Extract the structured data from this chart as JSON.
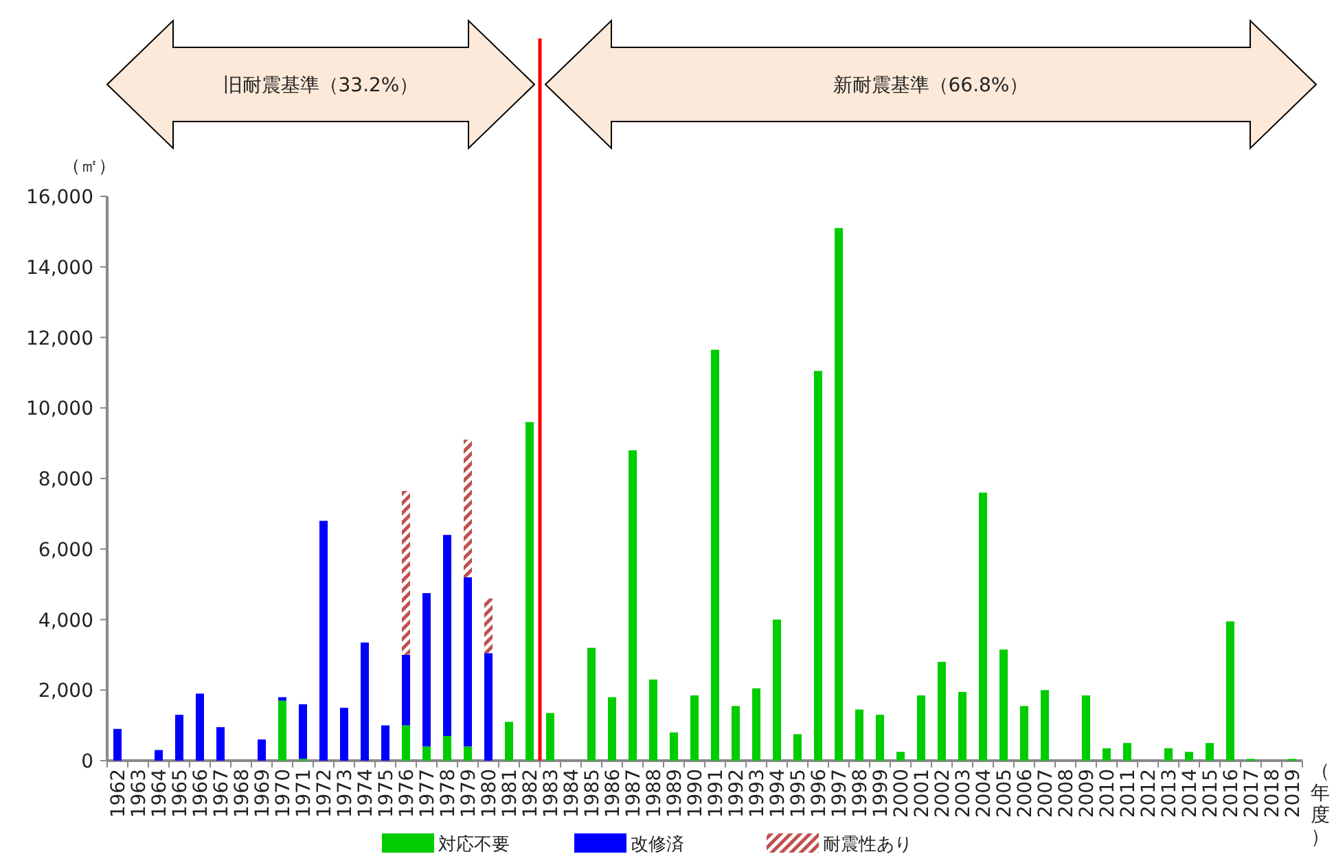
{
  "chart_data": {
    "type": "bar",
    "stacked": true,
    "annotations": [
      "旧耐震基準（33.2%）",
      "新耐震基準（66.8%）"
    ],
    "ylabel": "（㎡）",
    "xlabel": "（年度）",
    "categories": [
      "1962",
      "1963",
      "1964",
      "1965",
      "1966",
      "1967",
      "1968",
      "1969",
      "1970",
      "1971",
      "1972",
      "1973",
      "1974",
      "1975",
      "1976",
      "1977",
      "1978",
      "1979",
      "1980",
      "1981",
      "1982",
      "1983",
      "1984",
      "1985",
      "1986",
      "1987",
      "1988",
      "1989",
      "1990",
      "1991",
      "1992",
      "1993",
      "1994",
      "1995",
      "1996",
      "1997",
      "1998",
      "1999",
      "2000",
      "2001",
      "2002",
      "2003",
      "2004",
      "2005",
      "2006",
      "2007",
      "2008",
      "2009",
      "2010",
      "2011",
      "2012",
      "2013",
      "2014",
      "2015",
      "2016",
      "2017",
      "2018",
      "2019"
    ],
    "series": [
      {
        "name": "対応不要",
        "color": "#00cc00",
        "values": [
          null,
          null,
          null,
          null,
          null,
          null,
          null,
          null,
          1700,
          50,
          null,
          null,
          null,
          null,
          1000,
          400,
          700,
          400,
          null,
          1100,
          9600,
          1350,
          null,
          3200,
          1800,
          8800,
          2300,
          800,
          1850,
          11650,
          1550,
          2050,
          4000,
          750,
          11050,
          15100,
          1450,
          1300,
          250,
          1850,
          2800,
          1950,
          7600,
          3150,
          1550,
          2000,
          null,
          1850,
          350,
          500,
          null,
          350,
          250,
          500,
          3950,
          50,
          null,
          50
        ]
      },
      {
        "name": "改修済",
        "color": "#0000ff",
        "values": [
          900,
          null,
          300,
          1300,
          1900,
          950,
          null,
          600,
          100,
          1550,
          6800,
          1500,
          3350,
          1000,
          2000,
          4350,
          5700,
          4800,
          3050,
          null,
          null,
          null,
          null,
          null,
          null,
          null,
          null,
          null,
          null,
          null,
          null,
          null,
          null,
          null,
          null,
          null,
          null,
          null,
          null,
          null,
          null,
          null,
          null,
          null,
          null,
          null,
          null,
          null,
          null,
          null,
          null,
          null,
          null,
          null,
          null,
          null,
          null,
          null
        ]
      },
      {
        "name": "耐震性あり",
        "color": "#c0504d",
        "values": [
          null,
          null,
          null,
          null,
          null,
          null,
          null,
          null,
          null,
          null,
          null,
          null,
          null,
          null,
          4650,
          null,
          null,
          3900,
          1550,
          null,
          null,
          null,
          null,
          null,
          null,
          null,
          null,
          null,
          null,
          null,
          null,
          null,
          null,
          null,
          null,
          null,
          null,
          null,
          null,
          null,
          null,
          null,
          null,
          null,
          null,
          null,
          null,
          null,
          null,
          null,
          null,
          null,
          null,
          null,
          null,
          null,
          null,
          null
        ]
      }
    ],
    "ylim": [
      0,
      16000
    ],
    "yticks": [
      0,
      {
        "value": 2000,
        "label": "2,000"
      },
      {
        "value": 4000,
        "label": "4,000"
      },
      {
        "value": 6000,
        "label": "6,000"
      },
      {
        "value": 8000,
        "label": "8,000"
      },
      {
        "value": 10000,
        "label": "10,000"
      },
      {
        "value": 12000,
        "label": "12,000"
      },
      {
        "value": 14000,
        "label": "14,000"
      },
      {
        "value": 16000,
        "label": "16,000"
      }
    ],
    "ref_lines": [
      {
        "axis": "x",
        "value": "1982",
        "color": "#ff0000"
      }
    ],
    "legend": "bottom"
  }
}
